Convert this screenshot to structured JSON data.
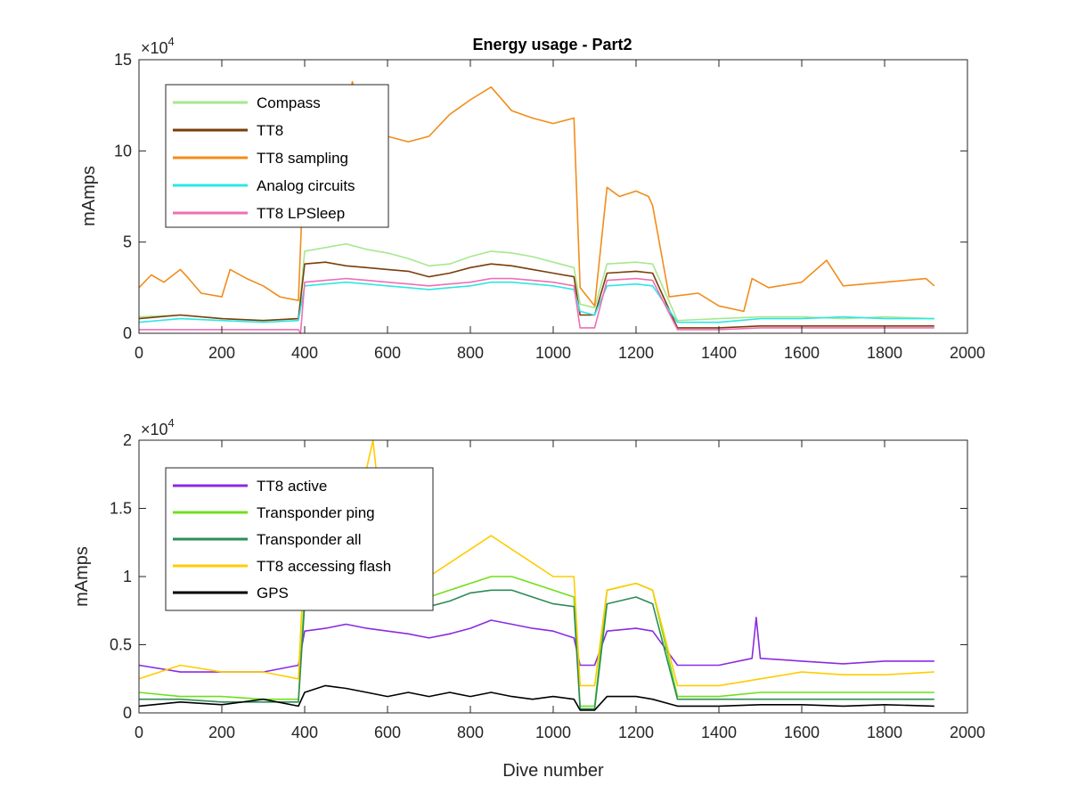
{
  "chart_data": [
    {
      "type": "line",
      "title": "Energy usage - Part2",
      "xlabel": "",
      "ylabel": "mAmps",
      "xlim": [
        0,
        2000
      ],
      "ylim": [
        0,
        15
      ],
      "y_multiplier_label": "×10",
      "y_multiplier_exponent": "4",
      "xticks": [
        "0",
        "200",
        "400",
        "600",
        "800",
        "1000",
        "1200",
        "1400",
        "1600",
        "1800",
        "2000"
      ],
      "yticks": [
        "0",
        "5",
        "10",
        "15"
      ],
      "grid": false,
      "legend_position": "top-left",
      "series": [
        {
          "name": "Compass",
          "color": "#a6e88f",
          "x": [
            0,
            100,
            200,
            300,
            385,
            400,
            450,
            500,
            550,
            600,
            650,
            700,
            750,
            800,
            850,
            900,
            950,
            1000,
            1050,
            1065,
            1100,
            1130,
            1200,
            1240,
            1300,
            1400,
            1500,
            1600,
            1700,
            1800,
            1920
          ],
          "y": [
            0.9,
            1.0,
            0.8,
            0.7,
            0.8,
            4.5,
            4.7,
            4.9,
            4.6,
            4.4,
            4.1,
            3.7,
            3.8,
            4.2,
            4.5,
            4.4,
            4.2,
            3.9,
            3.6,
            1.6,
            1.4,
            3.8,
            3.9,
            3.8,
            0.7,
            0.8,
            0.9,
            0.9,
            0.8,
            0.9,
            0.8
          ]
        },
        {
          "name": "TT8",
          "color": "#7a3d0a",
          "x": [
            0,
            100,
            200,
            300,
            385,
            400,
            450,
            500,
            550,
            600,
            650,
            700,
            750,
            800,
            850,
            900,
            950,
            1000,
            1050,
            1065,
            1100,
            1130,
            1200,
            1240,
            1300,
            1400,
            1500,
            1600,
            1700,
            1800,
            1920
          ],
          "y": [
            0.8,
            1.0,
            0.8,
            0.7,
            0.8,
            3.8,
            3.9,
            3.7,
            3.6,
            3.5,
            3.4,
            3.1,
            3.3,
            3.6,
            3.8,
            3.7,
            3.5,
            3.3,
            3.1,
            1.0,
            1.0,
            3.3,
            3.4,
            3.3,
            0.3,
            0.3,
            0.4,
            0.4,
            0.4,
            0.4,
            0.4
          ]
        },
        {
          "name": "TT8 sampling",
          "color": "#f28c1a",
          "x": [
            0,
            30,
            60,
            100,
            120,
            150,
            200,
            220,
            260,
            300,
            340,
            385,
            400,
            450,
            500,
            515,
            550,
            600,
            650,
            700,
            750,
            800,
            850,
            900,
            950,
            1000,
            1050,
            1065,
            1100,
            1130,
            1160,
            1200,
            1230,
            1240,
            1280,
            1350,
            1400,
            1460,
            1480,
            1520,
            1600,
            1660,
            1700,
            1800,
            1900,
            1920
          ],
          "y": [
            2.5,
            3.2,
            2.8,
            3.5,
            3.0,
            2.2,
            2.0,
            3.5,
            3.0,
            2.6,
            2.0,
            1.8,
            10.5,
            11.5,
            12.0,
            13.8,
            11.0,
            10.8,
            10.5,
            10.8,
            12.0,
            12.8,
            13.5,
            12.2,
            11.8,
            11.5,
            11.8,
            2.5,
            1.5,
            8.0,
            7.5,
            7.8,
            7.5,
            7.0,
            2.0,
            2.2,
            1.5,
            1.2,
            3.0,
            2.5,
            2.8,
            4.0,
            2.6,
            2.8,
            3.0,
            2.6
          ]
        },
        {
          "name": "Analog circuits",
          "color": "#2ee6e6",
          "x": [
            0,
            100,
            200,
            300,
            385,
            400,
            450,
            500,
            550,
            600,
            650,
            700,
            750,
            800,
            850,
            900,
            950,
            1000,
            1050,
            1065,
            1100,
            1130,
            1200,
            1240,
            1300,
            1400,
            1500,
            1600,
            1700,
            1800,
            1920
          ],
          "y": [
            0.6,
            0.8,
            0.7,
            0.6,
            0.7,
            2.6,
            2.7,
            2.8,
            2.7,
            2.6,
            2.5,
            2.4,
            2.5,
            2.6,
            2.8,
            2.8,
            2.7,
            2.6,
            2.4,
            1.2,
            1.0,
            2.6,
            2.7,
            2.6,
            0.6,
            0.6,
            0.8,
            0.8,
            0.9,
            0.8,
            0.8
          ]
        },
        {
          "name": "TT8 LPSleep",
          "color": "#ee6fb5",
          "x": [
            0,
            100,
            200,
            300,
            385,
            390,
            400,
            450,
            500,
            550,
            600,
            650,
            700,
            750,
            800,
            850,
            900,
            950,
            1000,
            1050,
            1065,
            1100,
            1130,
            1200,
            1240,
            1300,
            1400,
            1500,
            1600,
            1700,
            1800,
            1920
          ],
          "y": [
            0.2,
            0.2,
            0.2,
            0.2,
            0.2,
            0.0,
            2.8,
            2.9,
            3.0,
            2.9,
            2.8,
            2.7,
            2.6,
            2.7,
            2.8,
            3.0,
            3.0,
            2.9,
            2.8,
            2.6,
            0.3,
            0.3,
            2.9,
            3.0,
            2.9,
            0.2,
            0.2,
            0.3,
            0.3,
            0.3,
            0.3,
            0.3
          ]
        }
      ]
    },
    {
      "type": "line",
      "title": "",
      "xlabel": "Dive number",
      "ylabel": "mAmps",
      "xlim": [
        0,
        2000
      ],
      "ylim": [
        0,
        2
      ],
      "y_multiplier_label": "×10",
      "y_multiplier_exponent": "4",
      "xticks": [
        "0",
        "200",
        "400",
        "600",
        "800",
        "1000",
        "1200",
        "1400",
        "1600",
        "1800",
        "2000"
      ],
      "yticks": [
        "0",
        "0.5",
        "1",
        "1.5",
        "2"
      ],
      "grid": false,
      "legend_position": "top-left",
      "series": [
        {
          "name": "TT8 active",
          "color": "#8a2be2",
          "x": [
            0,
            100,
            200,
            300,
            385,
            400,
            450,
            500,
            550,
            600,
            650,
            700,
            750,
            800,
            850,
            900,
            950,
            1000,
            1050,
            1065,
            1100,
            1130,
            1200,
            1240,
            1300,
            1400,
            1480,
            1490,
            1500,
            1600,
            1700,
            1800,
            1920
          ],
          "y": [
            0.35,
            0.3,
            0.3,
            0.3,
            0.35,
            0.6,
            0.62,
            0.65,
            0.62,
            0.6,
            0.58,
            0.55,
            0.58,
            0.62,
            0.68,
            0.65,
            0.62,
            0.6,
            0.55,
            0.35,
            0.35,
            0.6,
            0.62,
            0.6,
            0.35,
            0.35,
            0.4,
            0.7,
            0.4,
            0.38,
            0.36,
            0.38,
            0.38
          ]
        },
        {
          "name": "Transponder ping",
          "color": "#6fe01a",
          "x": [
            0,
            100,
            200,
            300,
            385,
            400,
            450,
            500,
            550,
            600,
            650,
            700,
            750,
            800,
            850,
            900,
            950,
            1000,
            1050,
            1065,
            1100,
            1130,
            1200,
            1240,
            1300,
            1400,
            1500,
            1600,
            1700,
            1800,
            1920
          ],
          "y": [
            0.15,
            0.12,
            0.12,
            0.1,
            0.1,
            0.9,
            0.95,
            1.0,
            0.9,
            0.9,
            0.9,
            0.85,
            0.9,
            0.95,
            1.0,
            1.0,
            0.95,
            0.9,
            0.85,
            0.05,
            0.05,
            0.9,
            0.95,
            0.9,
            0.12,
            0.12,
            0.15,
            0.15,
            0.15,
            0.15,
            0.15
          ]
        },
        {
          "name": "Transponder all",
          "color": "#2e8b57",
          "x": [
            0,
            100,
            200,
            300,
            385,
            400,
            450,
            500,
            550,
            600,
            650,
            700,
            750,
            800,
            850,
            900,
            950,
            1000,
            1050,
            1065,
            1100,
            1130,
            1200,
            1240,
            1300,
            1400,
            1500,
            1600,
            1700,
            1800,
            1920
          ],
          "y": [
            0.1,
            0.1,
            0.08,
            0.08,
            0.08,
            0.8,
            0.85,
            0.9,
            0.85,
            0.8,
            0.8,
            0.78,
            0.82,
            0.88,
            0.9,
            0.9,
            0.85,
            0.8,
            0.78,
            0.03,
            0.03,
            0.8,
            0.85,
            0.8,
            0.1,
            0.1,
            0.1,
            0.1,
            0.1,
            0.1,
            0.1
          ]
        },
        {
          "name": "TT8 accessing flash",
          "color": "#ffcc00",
          "x": [
            0,
            100,
            200,
            300,
            385,
            400,
            450,
            500,
            550,
            565,
            600,
            650,
            700,
            750,
            800,
            850,
            900,
            950,
            1000,
            1050,
            1065,
            1100,
            1130,
            1200,
            1240,
            1300,
            1400,
            1500,
            1600,
            1700,
            1800,
            1920
          ],
          "y": [
            0.25,
            0.35,
            0.3,
            0.3,
            0.25,
            1.2,
            1.3,
            1.7,
            1.8,
            2.0,
            1.0,
            1.0,
            1.0,
            1.1,
            1.2,
            1.3,
            1.2,
            1.1,
            1.0,
            1.0,
            0.2,
            0.2,
            0.9,
            0.95,
            0.9,
            0.2,
            0.2,
            0.25,
            0.3,
            0.28,
            0.28,
            0.3
          ]
        },
        {
          "name": "GPS",
          "color": "#000000",
          "x": [
            0,
            100,
            200,
            300,
            385,
            400,
            450,
            500,
            550,
            600,
            650,
            700,
            750,
            800,
            850,
            900,
            950,
            1000,
            1050,
            1065,
            1100,
            1130,
            1200,
            1240,
            1300,
            1400,
            1500,
            1600,
            1700,
            1800,
            1920
          ],
          "y": [
            0.05,
            0.08,
            0.06,
            0.1,
            0.05,
            0.15,
            0.2,
            0.18,
            0.15,
            0.12,
            0.15,
            0.12,
            0.15,
            0.12,
            0.15,
            0.12,
            0.1,
            0.12,
            0.1,
            0.02,
            0.02,
            0.12,
            0.12,
            0.1,
            0.05,
            0.05,
            0.06,
            0.06,
            0.05,
            0.06,
            0.05
          ]
        }
      ]
    }
  ]
}
